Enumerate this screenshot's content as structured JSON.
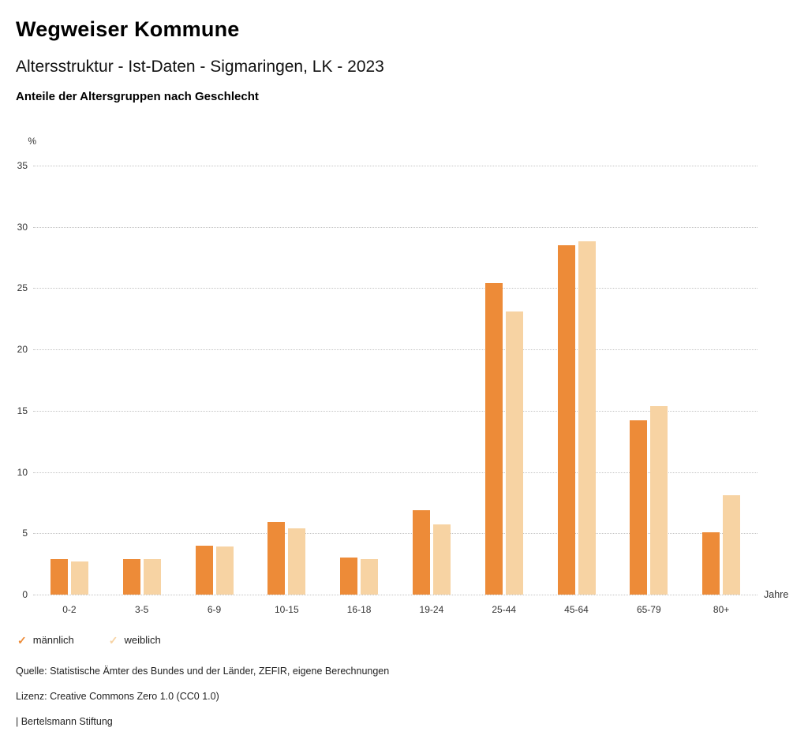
{
  "header": {
    "title": "Wegweiser Kommune",
    "subtitle": "Altersstruktur - Ist-Daten - Sigmaringen, LK - 2023",
    "chart_heading": "Anteile der Altersgruppen nach Geschlecht"
  },
  "chart_data": {
    "type": "bar",
    "categories": [
      "0-2",
      "3-5",
      "6-9",
      "10-15",
      "16-18",
      "19-24",
      "25-44",
      "45-64",
      "65-79",
      "80+"
    ],
    "series": [
      {
        "name": "männlich",
        "color": "#ED8B38",
        "values": [
          2.9,
          2.9,
          4.0,
          5.9,
          3.0,
          6.9,
          25.4,
          28.5,
          14.2,
          5.1
        ]
      },
      {
        "name": "weiblich",
        "color": "#F7D3A3",
        "values": [
          2.7,
          2.9,
          3.9,
          5.4,
          2.9,
          5.7,
          23.1,
          28.8,
          15.4,
          8.1
        ]
      }
    ],
    "title": "Anteile der Altersgruppen nach Geschlecht",
    "xlabel": "Jahre",
    "ylabel": "%",
    "ylim": [
      0,
      35
    ],
    "ytick_step": 5,
    "grid": true,
    "legend_position": "bottom-left"
  },
  "legend": {
    "check_glyph": "✓",
    "items": [
      {
        "label": "männlich",
        "color": "#ED8B38"
      },
      {
        "label": "weiblich",
        "color": "#F7D3A3"
      }
    ]
  },
  "footer": {
    "source": "Quelle: Statistische Ämter des Bundes und der Länder, ZEFIR, eigene Berechnungen",
    "license": "Lizenz: Creative Commons Zero 1.0 (CC0 1.0)",
    "attribution": "| Bertelsmann Stiftung"
  }
}
